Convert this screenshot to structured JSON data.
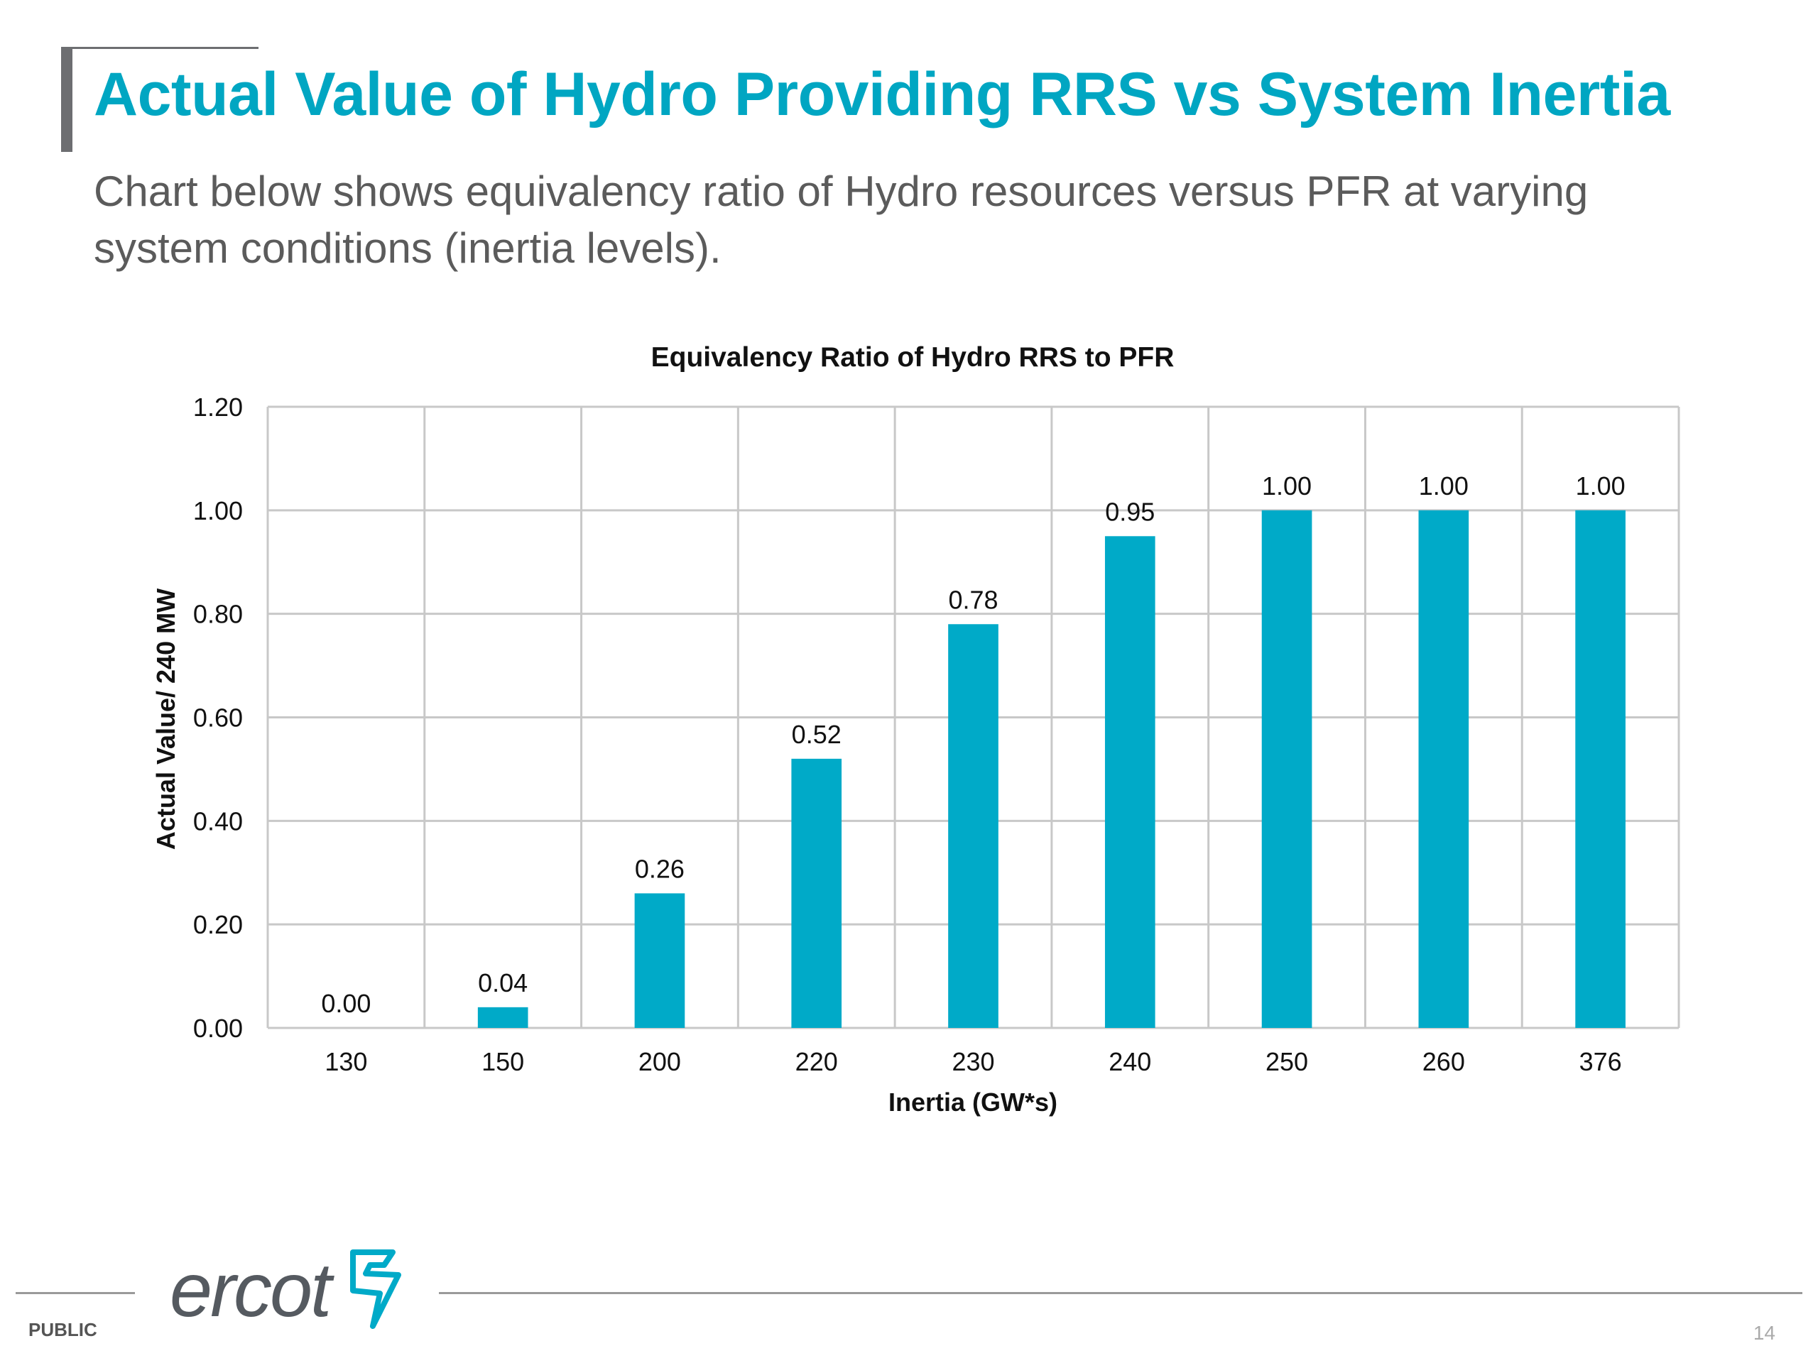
{
  "slide": {
    "title": "Actual Value of Hydro Providing RRS vs System Inertia",
    "subtitle": "Chart below shows equivalency ratio of Hydro resources versus PFR at varying system conditions (inertia levels).",
    "footer_label": "PUBLIC",
    "logo_text": "ercot",
    "page_number": "14"
  },
  "colors": {
    "bar": "#00aac8",
    "title": "#00a6c2",
    "grid": "#c8c8c8"
  },
  "chart_data": {
    "type": "bar",
    "title": "Equivalency Ratio of Hydro RRS to PFR",
    "xlabel": "Inertia (GW*s)",
    "ylabel": "Actual Value/ 240 MW",
    "categories": [
      "130",
      "150",
      "200",
      "220",
      "230",
      "240",
      "250",
      "260",
      "376"
    ],
    "values": [
      0.0,
      0.04,
      0.26,
      0.52,
      0.78,
      0.95,
      1.0,
      1.0,
      1.0
    ],
    "data_labels": [
      "0.00",
      "0.04",
      "0.26",
      "0.52",
      "0.78",
      "0.95",
      "1.00",
      "1.00",
      "1.00"
    ],
    "yticks": [
      "0.00",
      "0.20",
      "0.40",
      "0.60",
      "0.80",
      "1.00",
      "1.20"
    ],
    "ylim": [
      0,
      1.2
    ],
    "grid": true,
    "legend": "none"
  }
}
